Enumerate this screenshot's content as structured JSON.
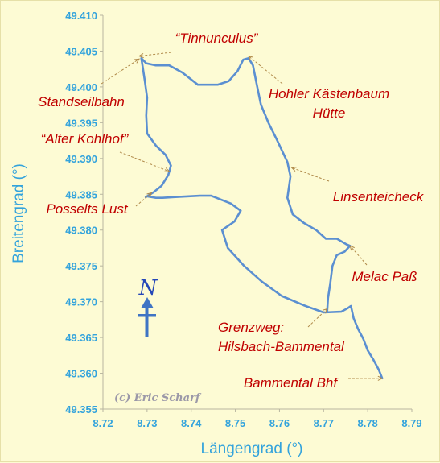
{
  "chart_data": {
    "type": "line",
    "xlabel": "Längengrad (°)",
    "ylabel": "Breitengrad (°)",
    "xlim": [
      8.72,
      8.79
    ],
    "ylim": [
      49.355,
      49.41
    ],
    "grid": false,
    "x_ticks": [
      "8.72",
      "8.73",
      "8.74",
      "8.75",
      "8.76",
      "8.77",
      "8.78",
      "8.79"
    ],
    "y_ticks": [
      "49.355",
      "49.360",
      "49.365",
      "49.370",
      "49.375",
      "49.380",
      "49.385",
      "49.390",
      "49.395",
      "49.400",
      "49.405",
      "49.410"
    ],
    "series": [
      {
        "color": "#5b8fd1",
        "points": [
          [
            8.7833,
            49.3593
          ],
          [
            8.7825,
            49.3605
          ],
          [
            8.7812,
            49.362
          ],
          [
            8.78,
            49.3632
          ],
          [
            8.779,
            49.3648
          ],
          [
            8.7778,
            49.3662
          ],
          [
            8.7768,
            49.3677
          ],
          [
            8.7762,
            49.3694
          ],
          [
            8.7755,
            49.3691
          ],
          [
            8.774,
            49.3686
          ],
          [
            8.77,
            49.3685
          ],
          [
            8.7655,
            49.3695
          ],
          [
            8.7605,
            49.3708
          ],
          [
            8.756,
            49.3728
          ],
          [
            8.752,
            49.375
          ],
          [
            8.7483,
            49.3775
          ],
          [
            8.747,
            49.38
          ],
          [
            8.7498,
            49.3812
          ],
          [
            8.7512,
            49.3827
          ],
          [
            8.749,
            49.3837
          ],
          [
            8.7445,
            49.3848
          ],
          [
            8.742,
            49.3848
          ],
          [
            8.739,
            49.3847
          ],
          [
            8.736,
            49.3846
          ],
          [
            8.7335,
            49.3845
          ],
          [
            8.732,
            49.3845
          ],
          [
            8.73,
            49.3847
          ],
          [
            8.7297,
            49.3846
          ],
          [
            8.7315,
            49.3853
          ],
          [
            8.7333,
            49.3862
          ],
          [
            8.7348,
            49.3877
          ],
          [
            8.7354,
            49.389
          ],
          [
            8.7342,
            49.3905
          ],
          [
            8.732,
            49.3918
          ],
          [
            8.73,
            49.3935
          ],
          [
            8.7298,
            49.396
          ],
          [
            8.73,
            49.3985
          ],
          [
            8.7295,
            49.4008
          ],
          [
            8.729,
            49.4028
          ],
          [
            8.7287,
            49.404
          ],
          [
            8.7298,
            49.4033
          ],
          [
            8.732,
            49.403
          ],
          [
            8.735,
            49.403
          ],
          [
            8.738,
            49.402
          ],
          [
            8.7415,
            49.4003
          ],
          [
            8.746,
            49.4003
          ],
          [
            8.7485,
            49.4008
          ],
          [
            8.7505,
            49.4022
          ],
          [
            8.7518,
            49.4038
          ],
          [
            8.753,
            49.404
          ],
          [
            8.754,
            49.403
          ],
          [
            8.7548,
            49.4005
          ],
          [
            8.7558,
            49.3975
          ],
          [
            8.7575,
            49.395
          ],
          [
            8.7595,
            49.3925
          ],
          [
            8.7618,
            49.3895
          ],
          [
            8.7625,
            49.3875
          ],
          [
            8.7618,
            49.3845
          ],
          [
            8.763,
            49.3822
          ],
          [
            8.7655,
            49.381
          ],
          [
            8.7683,
            49.38
          ],
          [
            8.7705,
            49.3788
          ],
          [
            8.773,
            49.3788
          ],
          [
            8.7752,
            49.378
          ],
          [
            8.776,
            49.3778
          ],
          [
            8.7748,
            49.377
          ],
          [
            8.773,
            49.3765
          ],
          [
            8.772,
            49.375
          ],
          [
            8.7715,
            49.3725
          ],
          [
            8.771,
            49.3705
          ],
          [
            8.7708,
            49.3686
          ]
        ]
      }
    ],
    "annotations": [
      {
        "id": "tinnunculus",
        "lines": [
          "“Tinnunculus”"
        ],
        "target": [
          8.7282,
          49.4043
        ]
      },
      {
        "id": "standseilbahn",
        "lines": [
          "Standseilbahn"
        ],
        "target": [
          8.7282,
          49.4039
        ]
      },
      {
        "id": "alter-kohlhof",
        "lines": [
          "“Alter Kohlhof”"
        ],
        "target": [
          8.735,
          49.3882
        ]
      },
      {
        "id": "posselts-lust",
        "lines": [
          "Posselts Lust"
        ],
        "target": [
          8.731,
          49.3852
        ]
      },
      {
        "id": "hohler-kastenbaum",
        "lines": [
          "Hohler Kästenbaum",
          "Hütte"
        ],
        "target": [
          8.753,
          49.4043
        ]
      },
      {
        "id": "linsenteicheck",
        "lines": [
          "Linsenteicheck"
        ],
        "target": [
          8.7628,
          49.3887
        ]
      },
      {
        "id": "melac-pass",
        "lines": [
          "Melac Paß"
        ],
        "target": [
          8.776,
          49.3778
        ]
      },
      {
        "id": "grenzweg",
        "lines": [
          "Grenzweg:",
          "Hilsbach-Bammental"
        ],
        "target": [
          8.7708,
          49.369
        ]
      },
      {
        "id": "bammental-bhf",
        "lines": [
          "Bammental Bhf"
        ],
        "target": [
          8.7833,
          49.3593
        ]
      }
    ],
    "north_arrow": "N",
    "credit": "(c) Eric Scharf"
  }
}
